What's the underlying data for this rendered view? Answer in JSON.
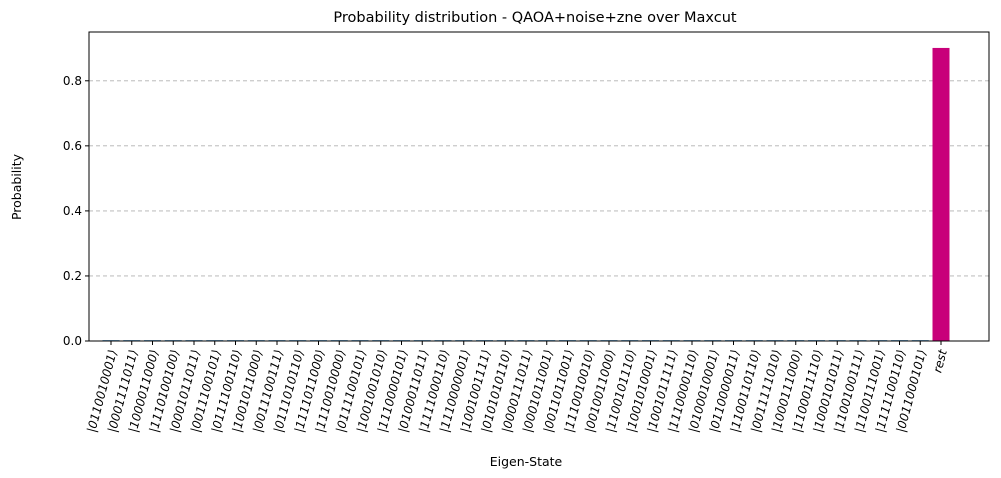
{
  "chart_data": {
    "type": "bar",
    "title": "Probability distribution - QAOA+noise+zne over Maxcut",
    "xlabel": "Eigen-State",
    "ylabel": "Probability",
    "ylim": [
      0,
      0.95
    ],
    "yticks": [
      "0.0",
      "0.2",
      "0.4",
      "0.6",
      "0.8"
    ],
    "grid": "y-dashed",
    "categories": [
      "|0110010001⟩",
      "|0001111011⟩",
      "|1000011000⟩",
      "|1110100100⟩",
      "|0001011011⟩",
      "|0011100101⟩",
      "|0111100110⟩",
      "|1001011000⟩",
      "|0011100111⟩",
      "|0111010110⟩",
      "|1111011000⟩",
      "|1110010000⟩",
      "|0111100101⟩",
      "|1001001010⟩",
      "|1110000101⟩",
      "|0100011011⟩",
      "|1111000110⟩",
      "|1110000001⟩",
      "|1001001111⟩",
      "|0101010110⟩",
      "|0000111011⟩",
      "|0001011001⟩",
      "|0011011001⟩",
      "|1110010010⟩",
      "|0010011000⟩",
      "|1100101110⟩",
      "|1001010001⟩",
      "|1001011111⟩",
      "|1110000110⟩",
      "|0100010001⟩",
      "|0110000011⟩",
      "|1100110110⟩",
      "|0011111010⟩",
      "|1000111000⟩",
      "|1100011110⟩",
      "|1000101011⟩",
      "|1100100111⟩",
      "|1100111001⟩",
      "|1111100110⟩",
      "|0011000101⟩",
      "rest"
    ],
    "values": [
      0.0025,
      0.0025,
      0.0025,
      0.0025,
      0.0025,
      0.0025,
      0.0025,
      0.0025,
      0.0025,
      0.0025,
      0.0025,
      0.0025,
      0.0025,
      0.0025,
      0.0025,
      0.0025,
      0.0025,
      0.0025,
      0.0025,
      0.0025,
      0.0025,
      0.0025,
      0.0025,
      0.0025,
      0.0025,
      0.0025,
      0.0025,
      0.0025,
      0.0025,
      0.0025,
      0.0025,
      0.0025,
      0.0025,
      0.0025,
      0.0025,
      0.0025,
      0.0025,
      0.0025,
      0.0025,
      0.0025,
      0.901
    ],
    "colors": {
      "bar": "#1f77b4",
      "rest_bar": "#c8007a",
      "grid": "#b0b0b0",
      "axis": "#000000"
    }
  }
}
